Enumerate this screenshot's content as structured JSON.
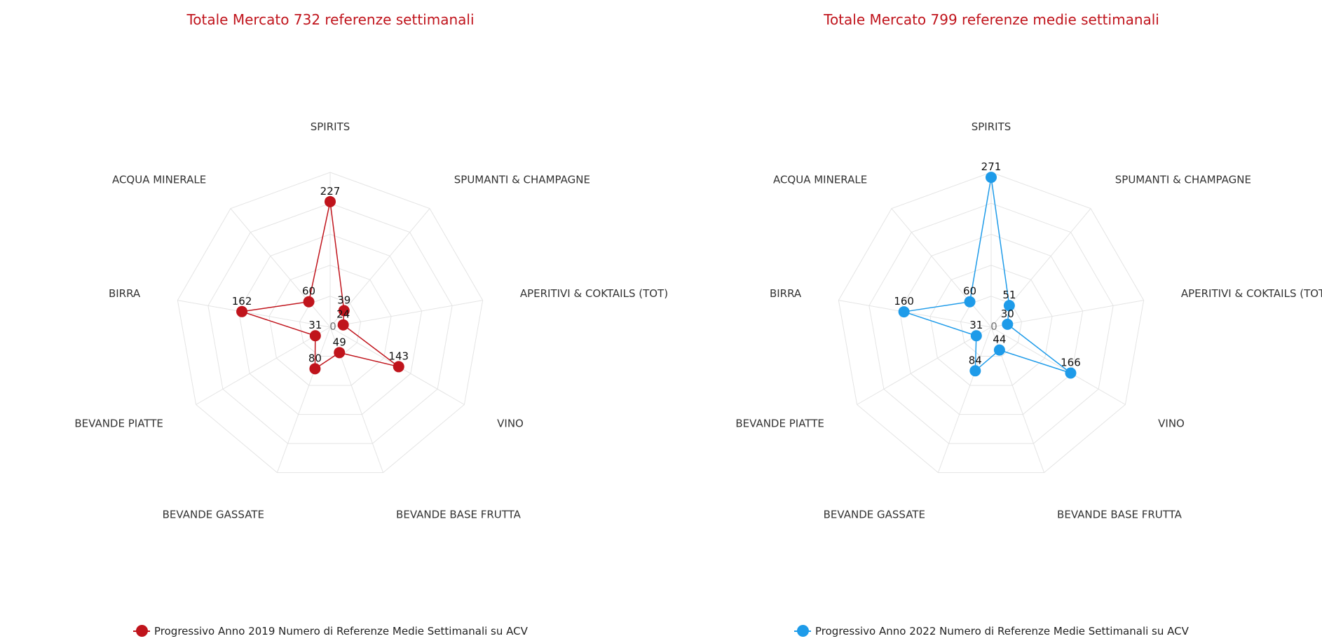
{
  "chart_data": [
    {
      "type": "radar",
      "title": "Totale Mercato 732 referenze settimanali",
      "color": "#c0141c",
      "axes": [
        "SPIRITS",
        "SPUMANTI & CHAMPAGNE",
        "APERITIVI & COKTAILS (TOT)",
        "VINO",
        "BEVANDE BASE FRUTTA",
        "BEVANDE GASSATE",
        "BEVANDE PIATTE",
        "BIRRA",
        "ACQUA MINERALE"
      ],
      "series": [
        {
          "name": "Progressivo Anno 2019 Numero di Referenze Medie Settimanali su ACV",
          "values": [
            227,
            39,
            24,
            143,
            49,
            80,
            31,
            162,
            60
          ]
        }
      ],
      "center_label": "0",
      "grid": true,
      "legend_position": "bottom-left"
    },
    {
      "type": "radar",
      "title": "Totale Mercato 799 referenze medie settimanali",
      "color": "#1e9be9",
      "axes": [
        "SPIRITS",
        "SPUMANTI & CHAMPAGNE",
        "APERITIVI & COKTAILS (TOT)",
        "VINO",
        "BEVANDE BASE FRUTTA",
        "BEVANDE GASSATE",
        "BEVANDE PIATTE",
        "BIRRA",
        "ACQUA MINERALE"
      ],
      "series": [
        {
          "name": "Progressivo Anno 2022 Numero di Referenze Medie Settimanali su ACV",
          "values": [
            271,
            51,
            30,
            166,
            44,
            84,
            31,
            160,
            60
          ]
        }
      ],
      "center_label": "0",
      "grid": true,
      "legend_position": "bottom-left"
    }
  ]
}
